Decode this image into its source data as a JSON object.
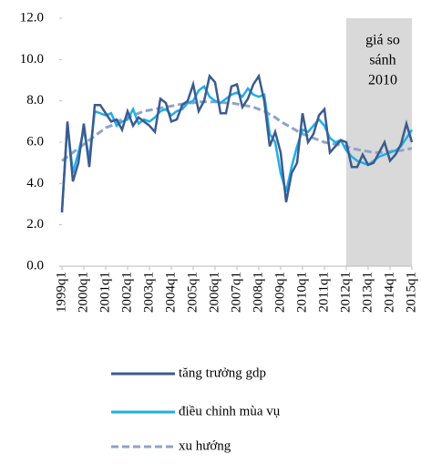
{
  "chart_data": {
    "type": "line",
    "categories": [
      "1999q1",
      null,
      null,
      null,
      "2000q1",
      null,
      null,
      null,
      "2001q1",
      null,
      null,
      null,
      "2002q1",
      null,
      null,
      null,
      "2003q1",
      null,
      null,
      null,
      "2004q1",
      null,
      null,
      null,
      "2005q1",
      null,
      null,
      null,
      "2006q1",
      null,
      null,
      null,
      "2007q1",
      null,
      null,
      null,
      "2008q1",
      null,
      null,
      null,
      "2009q1",
      null,
      null,
      null,
      "2010q1",
      null,
      null,
      null,
      "2011q1",
      null,
      null,
      null,
      "2012q1",
      null,
      null,
      null,
      "2013q1",
      null,
      null,
      null,
      "2014q1",
      null,
      null,
      null,
      "2015q1"
    ],
    "series": [
      {
        "name": "tăng trưởng gdp",
        "color": "#3b5b8f",
        "dash": false,
        "values": [
          2.6,
          7.0,
          4.1,
          5.0,
          6.9,
          4.8,
          7.8,
          7.8,
          7.4,
          7.0,
          7.1,
          6.6,
          7.5,
          6.8,
          7.2,
          7.0,
          6.8,
          6.5,
          8.1,
          7.9,
          7.0,
          7.1,
          7.8,
          8.0,
          8.8,
          7.5,
          8.0,
          9.2,
          8.9,
          7.4,
          7.4,
          8.7,
          8.8,
          7.7,
          8.1,
          8.8,
          9.2,
          8.0,
          5.8,
          6.5,
          5.5,
          3.1,
          4.5,
          5.0,
          7.4,
          6.0,
          6.4,
          7.3,
          7.6,
          5.5,
          5.8,
          6.1,
          6.0,
          4.8,
          4.8,
          5.4,
          4.9,
          5.0,
          5.5,
          6.0,
          5.1,
          5.4,
          5.9,
          6.9,
          6.0
        ]
      },
      {
        "name": "điều chỉnh mùa vụ",
        "color": "#1eaee8",
        "dash": false,
        "values": [
          2.7,
          6.9,
          4.5,
          5.5,
          6.6,
          5.2,
          7.5,
          7.4,
          7.3,
          7.4,
          6.8,
          7.0,
          7.1,
          7.6,
          6.9,
          7.1,
          7.0,
          7.2,
          7.5,
          7.6,
          7.3,
          7.5,
          7.6,
          7.9,
          8.0,
          8.5,
          8.7,
          8.2,
          8.0,
          7.9,
          8.1,
          8.3,
          8.4,
          8.2,
          8.6,
          8.3,
          8.2,
          8.3,
          6.4,
          6.0,
          4.5,
          3.6,
          4.8,
          5.8,
          6.6,
          6.5,
          6.8,
          7.1,
          6.8,
          6.2,
          6.0,
          6.1,
          5.6,
          5.3,
          5.1,
          5.0,
          4.9,
          5.1,
          5.3,
          5.4,
          5.5,
          5.6,
          5.8,
          6.2,
          6.6
        ]
      },
      {
        "name": "xu hướng",
        "color": "#8ea3c9",
        "dash": true,
        "values": [
          5.1,
          5.3,
          5.5,
          5.7,
          5.9,
          6.1,
          6.3,
          6.5,
          6.7,
          6.8,
          7.0,
          7.1,
          7.2,
          7.3,
          7.4,
          7.5,
          7.55,
          7.6,
          7.65,
          7.7,
          7.75,
          7.8,
          7.85,
          7.9,
          7.9,
          7.95,
          7.95,
          7.95,
          7.95,
          7.95,
          7.9,
          7.9,
          7.85,
          7.8,
          7.75,
          7.7,
          7.6,
          7.5,
          7.35,
          7.2,
          7.0,
          6.85,
          6.7,
          6.55,
          6.4,
          6.3,
          6.2,
          6.1,
          6.0,
          5.95,
          5.9,
          5.85,
          5.8,
          5.7,
          5.65,
          5.6,
          5.55,
          5.5,
          5.5,
          5.5,
          5.55,
          5.6,
          5.6,
          5.65,
          5.7
        ]
      }
    ],
    "ylim": [
      0,
      12
    ],
    "yticks": [
      {
        "value": 0,
        "label": "0.0"
      },
      {
        "value": 2,
        "label": "2.0"
      },
      {
        "value": 4,
        "label": "4.0"
      },
      {
        "value": 6,
        "label": "6.0"
      },
      {
        "value": 8,
        "label": "8.0"
      },
      {
        "value": 10,
        "label": "10.0"
      },
      {
        "value": 12,
        "label": "12.0"
      }
    ],
    "shade": {
      "from": "2012q1",
      "to": "2015q1",
      "color": "#d9d9d9"
    },
    "annotation": [
      "giá so",
      "sánh",
      "2010"
    ],
    "legend": "bottom"
  }
}
